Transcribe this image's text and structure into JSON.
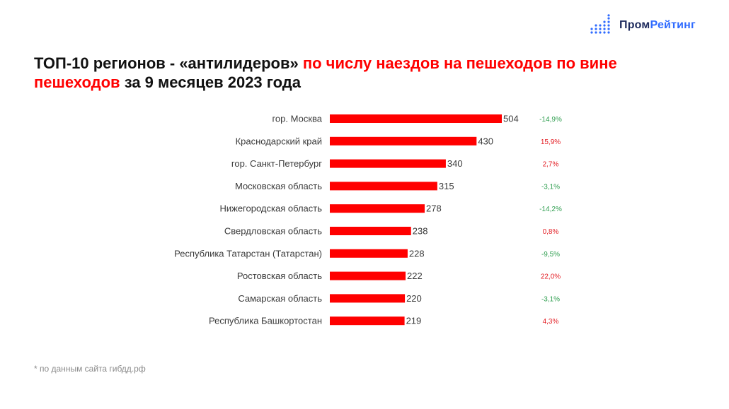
{
  "logo": {
    "word1": "Пром",
    "word2": "Рейтинг",
    "dot_color": "#2f6bff"
  },
  "title": {
    "part1": "ТОП-10 регионов - «антилидеров» ",
    "part2": "по числу наездов на пешеходов по вине пешеходов",
    "part3": " за 9 месяцев 2023 года"
  },
  "footnote": "* по данным сайта гибдд.рф",
  "chart_data": {
    "type": "bar",
    "orientation": "horizontal",
    "categories": [
      "гор. Москва",
      "Краснодарский край",
      "гор. Санкт-Петербург",
      "Московская область",
      "Нижегородская область",
      "Свердловская область",
      "Республика Татарстан (Татарстан)",
      "Ростовская область",
      "Самарская область",
      "Республика Башкортостан"
    ],
    "values": [
      504,
      430,
      340,
      315,
      278,
      238,
      228,
      222,
      220,
      219
    ],
    "changes": [
      "-14,9%",
      "15,9%",
      "2,7%",
      "-3,1%",
      "-14,2%",
      "0,8%",
      "-9,5%",
      "22,0%",
      "-3,1%",
      "4,3%"
    ],
    "bar_color": "#ff0000",
    "change_positive_color": "#e31e24",
    "change_negative_color": "#2e9e4f",
    "xlim": [
      0,
      504
    ],
    "grid": false
  }
}
